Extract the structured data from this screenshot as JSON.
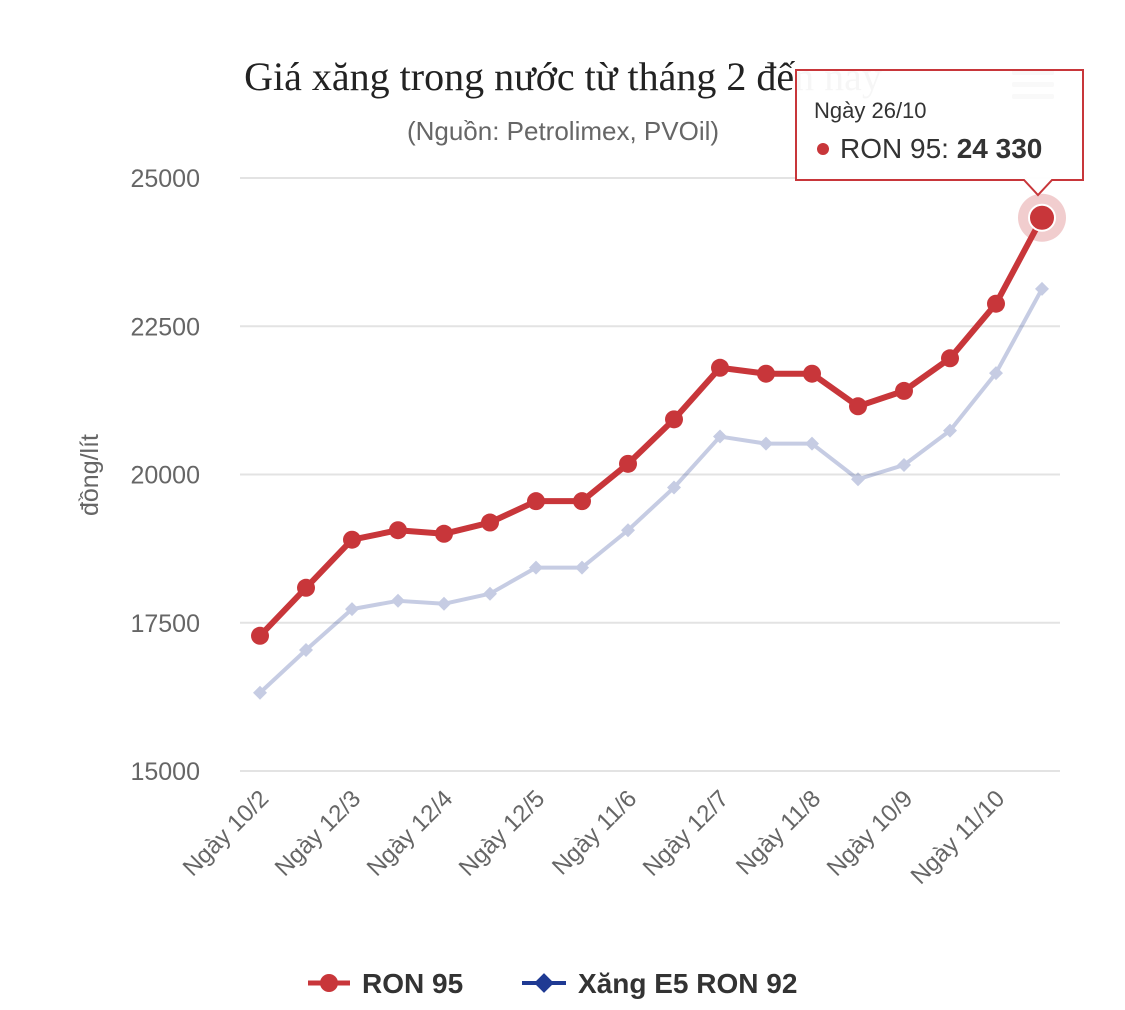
{
  "chart_data": {
    "type": "line",
    "title": "Giá xăng trong nước từ tháng 2 đến nay",
    "subtitle": "(Nguồn: Petrolimex, PVOil)",
    "ylabel": "đồng/lít",
    "xlabel": "",
    "ylim": [
      15000,
      25000
    ],
    "yticks": [
      15000,
      17500,
      20000,
      22500,
      25000
    ],
    "x_tick_labels": [
      "Ngày 10/2",
      "Ngày 12/3",
      "Ngày 12/4",
      "Ngày 12/5",
      "Ngày 11/6",
      "Ngày 12/7",
      "Ngày 11/8",
      "Ngày 10/9",
      "Ngày 11/10"
    ],
    "legend_position": "bottom-center",
    "grid": true,
    "series": [
      {
        "name": "RON 95",
        "color": "#c8363a",
        "values": [
          17280,
          18090,
          18900,
          19060,
          19000,
          19190,
          19550,
          19550,
          20180,
          20930,
          21800,
          21700,
          21700,
          21150,
          21410,
          21960,
          22880,
          24330
        ]
      },
      {
        "name": "Xăng E5 RON 92",
        "color": "#1f3a93",
        "values": [
          16320,
          17040,
          17730,
          17870,
          17820,
          17990,
          18430,
          18430,
          19060,
          19780,
          20640,
          20520,
          20520,
          19920,
          20160,
          20740,
          21710,
          23130
        ]
      }
    ],
    "tooltip": {
      "header": "Ngày 26/10",
      "series_name": "RON 95",
      "separator": ": ",
      "value": "24 330",
      "point_index": 17
    }
  },
  "menu_icon": "hamburger-menu-icon"
}
